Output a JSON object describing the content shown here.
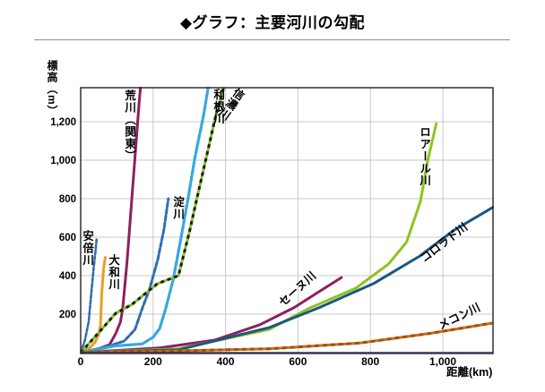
{
  "header": {
    "title": "◆グラフ：主要河川の勾配"
  },
  "chart_data": {
    "type": "line",
    "title": "主要河川の勾配",
    "xlabel": "距離(km)",
    "ylabel": "標高（m）",
    "xlim": [
      0,
      1140
    ],
    "ylim": [
      0,
      1380
    ],
    "grid": true,
    "legend_position": "labels-on-lines",
    "x_ticks": [
      {
        "value": 0,
        "label": "0"
      },
      {
        "value": 200,
        "label": "200"
      },
      {
        "value": 400,
        "label": "400"
      },
      {
        "value": 600,
        "label": "600"
      },
      {
        "value": 800,
        "label": "800"
      },
      {
        "value": 1000,
        "label": "1,000"
      }
    ],
    "y_ticks": [
      {
        "value": 200,
        "label": "200"
      },
      {
        "value": 400,
        "label": "400"
      },
      {
        "value": 600,
        "label": "600"
      },
      {
        "value": 800,
        "label": "800"
      },
      {
        "value": 1000,
        "label": "1,000"
      },
      {
        "value": 1200,
        "label": "1,200"
      }
    ],
    "series": [
      {
        "id": "abe",
        "name": "安倍川",
        "color": "#2e6fae",
        "dash": "4 2.2",
        "width": 2.6,
        "points": [
          [
            0,
            0
          ],
          [
            12,
            65
          ],
          [
            22,
            160
          ],
          [
            29,
            300
          ],
          [
            36,
            440
          ],
          [
            41,
            530
          ],
          [
            44,
            590
          ]
        ]
      },
      {
        "id": "yamato",
        "name": "大和川",
        "color": "#e5a024",
        "width": 3,
        "points": [
          [
            0,
            0
          ],
          [
            25,
            25
          ],
          [
            40,
            55
          ],
          [
            50,
            95
          ],
          [
            55,
            145
          ],
          [
            58,
            300
          ],
          [
            63,
            435
          ],
          [
            68,
            495
          ]
        ]
      },
      {
        "id": "arakawa",
        "name": "荒川（関東）",
        "color": "#8e1f5f",
        "width": 3,
        "points": [
          [
            0,
            0
          ],
          [
            50,
            20
          ],
          [
            80,
            42
          ],
          [
            97,
            100
          ],
          [
            110,
            160
          ],
          [
            116,
            230
          ],
          [
            128,
            470
          ],
          [
            141,
            795
          ],
          [
            153,
            1090
          ],
          [
            162,
            1310
          ],
          [
            165,
            1377
          ]
        ]
      },
      {
        "id": "yodo",
        "name": "淀川",
        "color": "#2e6fae",
        "dash": "5 2.5",
        "width": 3,
        "points": [
          [
            0,
            0
          ],
          [
            70,
            30
          ],
          [
            120,
            60
          ],
          [
            150,
            120
          ],
          [
            170,
            230
          ],
          [
            190,
            330
          ],
          [
            213,
            485
          ],
          [
            230,
            640
          ],
          [
            242,
            800
          ]
        ]
      },
      {
        "id": "tone",
        "name": "利根川",
        "color": "#35a8de",
        "dash": "6 2",
        "width": 3.2,
        "points": [
          [
            0,
            0
          ],
          [
            95,
            35
          ],
          [
            170,
            45
          ],
          [
            200,
            80
          ],
          [
            218,
            125
          ],
          [
            235,
            230
          ],
          [
            255,
            375
          ],
          [
            275,
            575
          ],
          [
            296,
            795
          ],
          [
            315,
            1010
          ],
          [
            340,
            1240
          ],
          [
            352,
            1377
          ]
        ]
      },
      {
        "id": "shinano",
        "name": "信濃川",
        "color": "#86bf28",
        "width": 3,
        "overlay": {
          "color": "#1a1a1a",
          "dash": "4 4"
        },
        "points": [
          [
            0,
            0
          ],
          [
            48,
            100
          ],
          [
            97,
            205
          ],
          [
            141,
            250
          ],
          [
            212,
            358
          ],
          [
            270,
            400
          ],
          [
            300,
            625
          ],
          [
            322,
            810
          ],
          [
            350,
            1040
          ],
          [
            374,
            1240
          ],
          [
            395,
            1377
          ]
        ]
      },
      {
        "id": "seine",
        "name": "セーヌ川",
        "color": "#8e1f5f",
        "width": 3,
        "points": [
          [
            0,
            0
          ],
          [
            220,
            25
          ],
          [
            370,
            65
          ],
          [
            495,
            145
          ],
          [
            590,
            235
          ],
          [
            665,
            325
          ],
          [
            720,
            390
          ]
        ]
      },
      {
        "id": "loire",
        "name": "ロアール川",
        "color": "#8dc420",
        "width": 3,
        "points": [
          [
            0,
            0
          ],
          [
            270,
            20
          ],
          [
            520,
            120
          ],
          [
            630,
            230
          ],
          [
            760,
            335
          ],
          [
            850,
            460
          ],
          [
            900,
            575
          ],
          [
            938,
            785
          ],
          [
            958,
            995
          ],
          [
            982,
            1190
          ]
        ]
      },
      {
        "id": "colorado",
        "name": "コロラド川",
        "color": "#1c567f",
        "width": 3,
        "points": [
          [
            0,
            0
          ],
          [
            270,
            15
          ],
          [
            520,
            130
          ],
          [
            660,
            235
          ],
          [
            810,
            360
          ],
          [
            935,
            500
          ],
          [
            1030,
            635
          ],
          [
            1138,
            755
          ]
        ]
      },
      {
        "id": "mekong",
        "name": "メコン川",
        "color": "#c8701e",
        "width": 3,
        "overlay": {
          "color": "#a0500f",
          "dash": "5 4"
        },
        "points": [
          [
            0,
            0
          ],
          [
            250,
            8
          ],
          [
            520,
            20
          ],
          [
            770,
            50
          ],
          [
            965,
            100
          ],
          [
            1135,
            153
          ]
        ]
      }
    ]
  }
}
